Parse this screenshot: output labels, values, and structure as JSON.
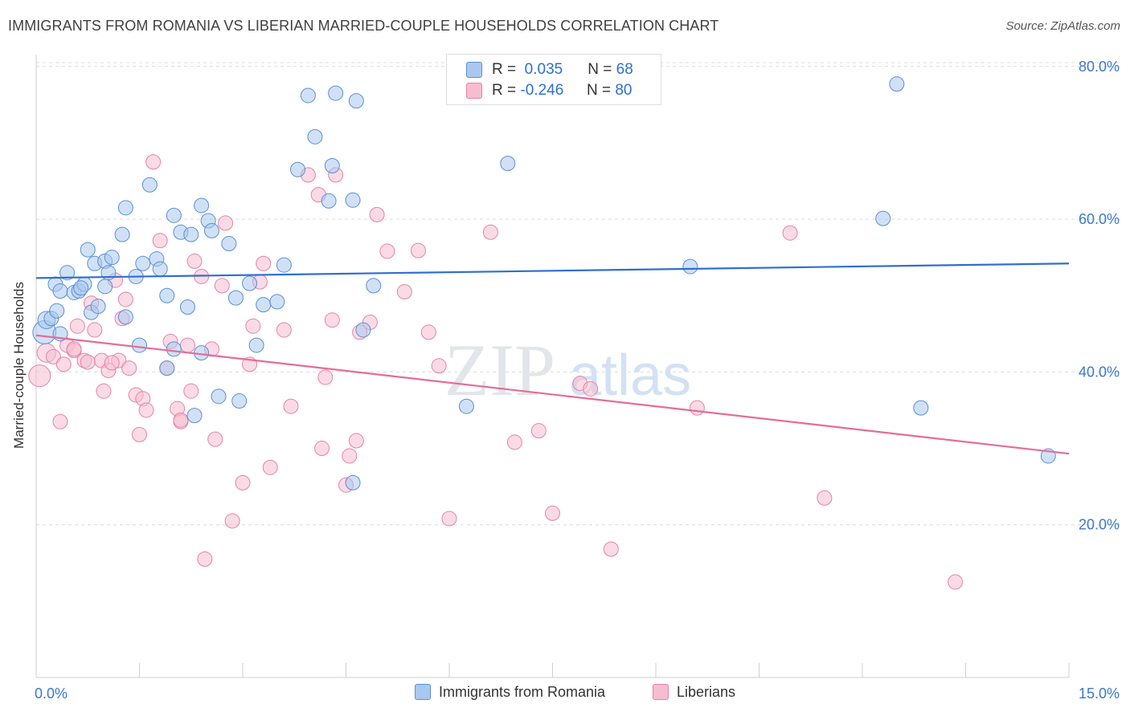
{
  "title": "IMMIGRANTS FROM ROMANIA VS LIBERIAN MARRIED-COUPLE HOUSEHOLDS CORRELATION CHART",
  "source": "Source: ZipAtlas.com",
  "watermark": {
    "zip": "ZIP",
    "atlas": "atlas"
  },
  "legend": {
    "romania": {
      "r_label": "R =",
      "r_value": "0.035",
      "n_label": "N =",
      "n_value": "68",
      "name": "Immigrants from Romania",
      "fill": "#a9c8ef",
      "stroke": "#5b8fd6"
    },
    "liberia": {
      "r_label": "R =",
      "r_value": "-0.246",
      "n_label": "N =",
      "n_value": "80",
      "name": "Liberians",
      "fill": "#f6bdd0",
      "stroke": "#e683a5"
    }
  },
  "chart_data": {
    "type": "scatter",
    "title": "IMMIGRANTS FROM ROMANIA VS LIBERIAN MARRIED-COUPLE HOUSEHOLDS CORRELATION CHART",
    "xlabel": "",
    "ylabel": "Married-couple Households",
    "xlim": [
      0,
      15
    ],
    "ylim": [
      0,
      82.5
    ],
    "x_tick_labels": [
      {
        "value": 0,
        "label": "0.0%"
      },
      {
        "value": 15,
        "label": "15.0%"
      }
    ],
    "y_tick_labels": [
      {
        "value": 20,
        "label": "20.0%"
      },
      {
        "value": 40,
        "label": "40.0%"
      },
      {
        "value": 60,
        "label": "60.0%"
      },
      {
        "value": 80,
        "label": "80.0%"
      }
    ],
    "series": [
      {
        "name": "Immigrants from Romania",
        "color": "#5b8fd6",
        "trend": {
          "x": [
            0,
            15
          ],
          "y": [
            52.3,
            54.2
          ]
        },
        "points": [
          [
            0.12,
            45.2,
            1.6
          ],
          [
            0.15,
            46.8,
            1.2
          ],
          [
            0.22,
            47.0,
            1
          ],
          [
            0.28,
            51.5,
            1
          ],
          [
            0.35,
            50.6,
            1
          ],
          [
            0.45,
            53.0,
            1
          ],
          [
            0.55,
            50.4,
            1
          ],
          [
            0.62,
            50.6,
            1
          ],
          [
            0.7,
            51.5,
            1
          ],
          [
            0.75,
            56.0,
            1
          ],
          [
            0.85,
            54.2,
            1
          ],
          [
            0.8,
            47.8,
            1
          ],
          [
            0.9,
            48.6,
            1
          ],
          [
            1.0,
            54.5,
            1
          ],
          [
            1.05,
            53.0,
            1
          ],
          [
            1.1,
            55.0,
            1
          ],
          [
            1.25,
            58.0,
            1
          ],
          [
            1.3,
            61.5,
            1
          ],
          [
            1.45,
            52.5,
            1
          ],
          [
            1.55,
            54.2,
            1
          ],
          [
            1.65,
            64.5,
            1
          ],
          [
            1.75,
            54.8,
            1
          ],
          [
            1.8,
            53.5,
            1
          ],
          [
            1.9,
            50.0,
            1
          ],
          [
            2.0,
            60.5,
            1
          ],
          [
            2.1,
            58.3,
            1
          ],
          [
            2.2,
            48.5,
            1
          ],
          [
            2.25,
            58.0,
            1
          ],
          [
            2.4,
            61.8,
            1
          ],
          [
            2.5,
            59.8,
            1
          ],
          [
            2.55,
            58.5,
            1
          ],
          [
            2.8,
            56.8,
            1
          ],
          [
            2.9,
            49.7,
            1
          ],
          [
            3.1,
            51.6,
            1
          ],
          [
            3.3,
            48.8,
            1
          ],
          [
            3.5,
            49.2,
            1
          ],
          [
            3.6,
            54.0,
            1
          ],
          [
            3.8,
            66.5,
            1
          ],
          [
            3.95,
            76.2,
            1
          ],
          [
            4.05,
            70.8,
            1
          ],
          [
            4.25,
            62.4,
            1
          ],
          [
            4.3,
            67.0,
            1
          ],
          [
            4.35,
            76.5,
            1
          ],
          [
            4.6,
            62.5,
            1
          ],
          [
            4.65,
            75.5,
            1
          ],
          [
            4.75,
            45.5,
            1
          ],
          [
            4.9,
            51.3,
            1
          ],
          [
            1.5,
            43.5,
            1
          ],
          [
            2.0,
            43.0,
            1
          ],
          [
            2.4,
            42.5,
            1
          ],
          [
            1.9,
            40.5,
            1
          ],
          [
            3.2,
            43.5,
            1
          ],
          [
            1.3,
            47.2,
            1
          ],
          [
            2.65,
            36.8,
            1
          ],
          [
            2.3,
            34.3,
            1
          ],
          [
            2.95,
            36.2,
            1
          ],
          [
            4.6,
            25.5,
            1
          ],
          [
            6.25,
            35.5,
            1
          ],
          [
            6.85,
            67.3,
            1
          ],
          [
            9.5,
            53.8,
            1
          ],
          [
            12.5,
            77.7,
            1
          ],
          [
            12.3,
            60.1,
            1
          ],
          [
            12.85,
            35.3,
            1
          ],
          [
            14.7,
            29.0,
            1
          ],
          [
            0.35,
            45.0,
            1
          ],
          [
            1.0,
            51.2,
            1
          ],
          [
            0.65,
            51.0,
            1
          ],
          [
            0.3,
            48.0,
            1
          ]
        ]
      },
      {
        "name": "Liberians",
        "color": "#e683a5",
        "trend": {
          "x": [
            0,
            15
          ],
          "y": [
            44.8,
            29.3
          ]
        },
        "points": [
          [
            0.05,
            39.5,
            1.5
          ],
          [
            0.15,
            42.5,
            1.3
          ],
          [
            0.25,
            42.0,
            1
          ],
          [
            0.35,
            33.5,
            1
          ],
          [
            0.45,
            43.5,
            1
          ],
          [
            0.55,
            42.8,
            1
          ],
          [
            0.6,
            46.0,
            1
          ],
          [
            0.7,
            41.5,
            1
          ],
          [
            0.8,
            49.0,
            1
          ],
          [
            0.85,
            45.5,
            1
          ],
          [
            0.95,
            41.5,
            1
          ],
          [
            0.98,
            37.5,
            1
          ],
          [
            1.05,
            40.2,
            1
          ],
          [
            1.15,
            52.0,
            1
          ],
          [
            1.2,
            41.5,
            1
          ],
          [
            1.25,
            47.0,
            1
          ],
          [
            1.3,
            49.5,
            1
          ],
          [
            1.35,
            40.5,
            1
          ],
          [
            1.45,
            37.0,
            1
          ],
          [
            1.5,
            31.8,
            1
          ],
          [
            1.55,
            36.5,
            1
          ],
          [
            1.6,
            35.0,
            1
          ],
          [
            1.7,
            67.5,
            1
          ],
          [
            1.8,
            57.2,
            1
          ],
          [
            1.9,
            40.5,
            1
          ],
          [
            1.95,
            44.0,
            1
          ],
          [
            2.05,
            35.2,
            1
          ],
          [
            2.1,
            33.5,
            1
          ],
          [
            2.2,
            43.5,
            1
          ],
          [
            2.25,
            37.5,
            1
          ],
          [
            2.3,
            54.5,
            1
          ],
          [
            2.4,
            52.5,
            1
          ],
          [
            2.45,
            15.5,
            1
          ],
          [
            2.55,
            43.0,
            1
          ],
          [
            2.6,
            31.2,
            1
          ],
          [
            2.7,
            51.3,
            1
          ],
          [
            2.75,
            59.5,
            1
          ],
          [
            2.85,
            20.5,
            1
          ],
          [
            3.0,
            25.5,
            1
          ],
          [
            3.1,
            41.0,
            1
          ],
          [
            3.15,
            46.0,
            1
          ],
          [
            3.25,
            51.8,
            1
          ],
          [
            3.3,
            54.2,
            1
          ],
          [
            3.4,
            27.5,
            1
          ],
          [
            3.6,
            45.5,
            1
          ],
          [
            3.7,
            35.5,
            1
          ],
          [
            3.95,
            65.8,
            1
          ],
          [
            4.1,
            63.2,
            1
          ],
          [
            4.15,
            30.0,
            1
          ],
          [
            4.2,
            39.3,
            1
          ],
          [
            4.3,
            46.8,
            1
          ],
          [
            4.35,
            65.8,
            1
          ],
          [
            4.5,
            25.2,
            1
          ],
          [
            4.55,
            29.0,
            1
          ],
          [
            4.65,
            31.0,
            1
          ],
          [
            4.7,
            45.2,
            1
          ],
          [
            4.85,
            46.5,
            1
          ],
          [
            4.95,
            60.6,
            1
          ],
          [
            5.1,
            55.8,
            1
          ],
          [
            5.35,
            50.5,
            1
          ],
          [
            5.55,
            55.9,
            1
          ],
          [
            5.7,
            45.2,
            1
          ],
          [
            5.85,
            40.8,
            1
          ],
          [
            6.0,
            20.8,
            1
          ],
          [
            6.6,
            58.3,
            1
          ],
          [
            6.95,
            30.8,
            1
          ],
          [
            7.3,
            32.3,
            1
          ],
          [
            7.5,
            21.5,
            1
          ],
          [
            7.9,
            38.5,
            1
          ],
          [
            8.05,
            37.8,
            1
          ],
          [
            8.35,
            16.8,
            1
          ],
          [
            9.6,
            35.3,
            1
          ],
          [
            10.95,
            58.2,
            1
          ],
          [
            11.45,
            23.5,
            1
          ],
          [
            13.35,
            12.5,
            1
          ],
          [
            2.1,
            33.7,
            1
          ],
          [
            0.4,
            41.0,
            1
          ],
          [
            0.55,
            43.0,
            1
          ],
          [
            0.75,
            41.3,
            1
          ],
          [
            1.1,
            41.2,
            1
          ]
        ]
      }
    ]
  }
}
